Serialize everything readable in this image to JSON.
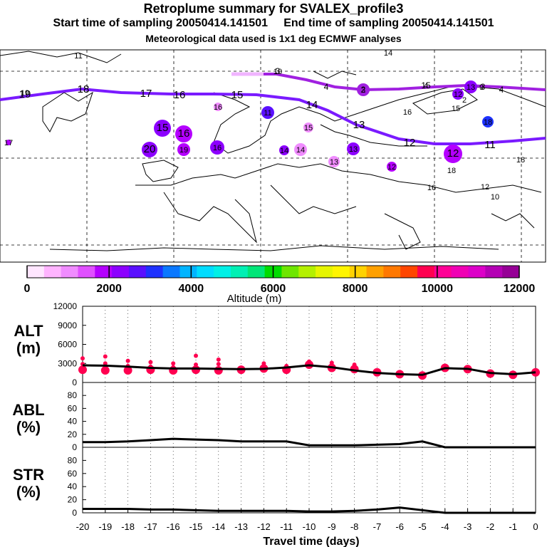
{
  "header": {
    "title": "Retroplume summary for SVALEX_profile3",
    "start_label": "Start time of sampling 20050414.141501",
    "end_label": "End time of sampling 20050414.141501",
    "met_label": "Meteorological data used is 1x1 deg ECMWF analyses"
  },
  "map": {
    "trajectory_labels": [
      "19",
      "18",
      "17",
      "16",
      "15",
      "14",
      "13",
      "12",
      "11"
    ],
    "upper_labels": [
      "3",
      "4",
      "2",
      "15",
      "3",
      "4"
    ],
    "cluster_labels": [
      "19",
      "17",
      "15",
      "16",
      "20",
      "19",
      "16",
      "14",
      "13",
      "14",
      "15",
      "16",
      "13",
      "12",
      "12",
      "11",
      "18",
      "18",
      "12",
      "10",
      "9",
      "10",
      "3",
      "4",
      "2",
      "15",
      "16",
      "14",
      "16",
      "18",
      "11",
      "12",
      "13"
    ]
  },
  "colorbar": {
    "title": "Altitude (m)",
    "tick_labels": [
      "0",
      "2000",
      "4000",
      "6000",
      "8000",
      "10000",
      "12000"
    ],
    "range": [
      0,
      12000
    ],
    "colors": [
      "#ffe6ff",
      "#ffb4ff",
      "#f08cff",
      "#e050ff",
      "#b400ff",
      "#8c00ff",
      "#5a10ff",
      "#1e32ff",
      "#0a78ff",
      "#00b4ff",
      "#00dcff",
      "#00f0e6",
      "#00f0b4",
      "#00e678",
      "#00dc00",
      "#6ee600",
      "#b4f000",
      "#e6f500",
      "#fff500",
      "#ffd200",
      "#ffa000",
      "#ff7800",
      "#ff4600",
      "#ff0050",
      "#ff0096",
      "#f000b4",
      "#dc00c8",
      "#b400b4",
      "#960096"
    ]
  },
  "chart_data": [
    {
      "type": "line",
      "panel": "ALT",
      "ylabel": "ALT (m)",
      "ylim": [
        0,
        12000
      ],
      "yticks": [
        0,
        3000,
        6000,
        9000,
        12000
      ],
      "x": [
        -20,
        -19,
        -18,
        -17,
        -16,
        -15,
        -14,
        -13,
        -12,
        -11,
        -10,
        -9,
        -8,
        -7,
        -6,
        -5,
        -4,
        -3,
        -2,
        -1,
        0
      ],
      "values": [
        2700,
        2650,
        2500,
        2300,
        2200,
        2200,
        2150,
        2100,
        2150,
        2350,
        2700,
        2400,
        1900,
        1500,
        1300,
        1200,
        2250,
        2150,
        1500,
        1300,
        1600
      ],
      "points": [
        {
          "x": -20,
          "y": [
            3800,
            2900,
            2000
          ]
        },
        {
          "x": -19,
          "y": [
            4100,
            3000,
            1900
          ]
        },
        {
          "x": -18,
          "y": [
            3400,
            2600,
            1900
          ]
        },
        {
          "x": -17,
          "y": [
            3200,
            2500,
            2000
          ]
        },
        {
          "x": -16,
          "y": [
            3000,
            2400,
            1900
          ]
        },
        {
          "x": -15,
          "y": [
            4200,
            2800,
            2000
          ]
        },
        {
          "x": -14,
          "y": [
            3600,
            2900,
            1900
          ]
        },
        {
          "x": -13,
          "y": [
            2200,
            2000
          ]
        },
        {
          "x": -12,
          "y": [
            3000,
            2200
          ]
        },
        {
          "x": -11,
          "y": [
            2600,
            2000
          ]
        },
        {
          "x": -10,
          "y": [
            3300,
            2800
          ]
        },
        {
          "x": -9,
          "y": [
            3100,
            2300
          ]
        },
        {
          "x": -8,
          "y": [
            2800,
            2100
          ]
        },
        {
          "x": -7,
          "y": [
            1600
          ]
        },
        {
          "x": -6,
          "y": [
            1300
          ]
        },
        {
          "x": -5,
          "y": [
            1100
          ]
        },
        {
          "x": -4,
          "y": [
            2300
          ]
        },
        {
          "x": -3,
          "y": [
            2100
          ]
        },
        {
          "x": -2,
          "y": [
            1400
          ]
        },
        {
          "x": -1,
          "y": [
            1200
          ]
        },
        {
          "x": 0,
          "y": [
            1600
          ]
        }
      ]
    },
    {
      "type": "line",
      "panel": "ABL",
      "ylabel": "ABL (%)",
      "ylim": [
        0,
        100
      ],
      "yticks": [
        0,
        20,
        40,
        60,
        80
      ],
      "x": [
        -20,
        -19,
        -18,
        -17,
        -16,
        -15,
        -14,
        -13,
        -12,
        -11,
        -10,
        -9,
        -8,
        -7,
        -6,
        -5,
        -4,
        -3,
        -2,
        -1,
        0
      ],
      "values": [
        8,
        8,
        9,
        11,
        13,
        12,
        11,
        9,
        9,
        9,
        3,
        3,
        3,
        4,
        5,
        9,
        0,
        0,
        0,
        0,
        0
      ]
    },
    {
      "type": "line",
      "panel": "STR",
      "ylabel": "STR (%)",
      "ylim": [
        0,
        100
      ],
      "yticks": [
        0,
        20,
        40,
        60,
        80
      ],
      "x": [
        -20,
        -19,
        -18,
        -17,
        -16,
        -15,
        -14,
        -13,
        -12,
        -11,
        -10,
        -9,
        -8,
        -7,
        -6,
        -5,
        -4,
        -3,
        -2,
        -1,
        0
      ],
      "values": [
        6,
        6,
        6,
        5,
        5,
        4,
        3,
        3,
        3,
        3,
        2,
        2,
        3,
        5,
        8,
        4,
        0,
        0,
        0,
        0,
        0
      ]
    }
  ],
  "xaxis": {
    "label": "Travel time (days)",
    "tick_labels": [
      "-20",
      "-19",
      "-18",
      "-17",
      "-16",
      "-15",
      "-14",
      "-13",
      "-12",
      "-11",
      "-10",
      "-9",
      "-8",
      "-7",
      "-6",
      "-5",
      "-4",
      "-3",
      "-2",
      "-1",
      "0"
    ]
  },
  "panel_labels": {
    "alt_1": "ALT",
    "alt_2": "(m)",
    "abl_1": "ABL",
    "abl_2": "(%)",
    "str_1": "STR",
    "str_2": "(%)"
  },
  "series_colors": {
    "line": "#000000",
    "points": "#ff0050",
    "trajectory": "#7a1aff",
    "upper": "#a020e0"
  }
}
